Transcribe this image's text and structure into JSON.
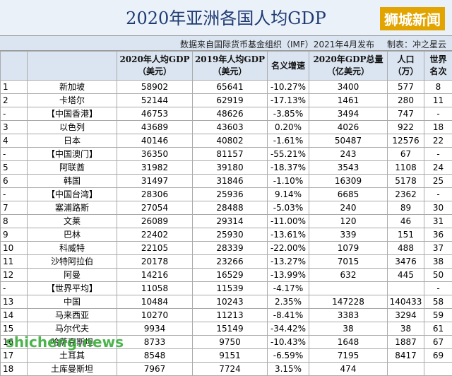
{
  "header": {
    "title": "2020年亚洲各国人均GDP",
    "logo": "狮城新闻",
    "source": "数据来自国际货币基金组织（IMF）2021年4月发布",
    "author": "制表：冲之星云"
  },
  "table": {
    "columns": [
      [
        "2020年人均GDP",
        "（美元）"
      ],
      [
        "2019年人均GDP",
        "（美元）"
      ],
      [
        "名义增速"
      ],
      [
        "2020年GDP总量",
        "（亿美元）"
      ],
      [
        "人口",
        "（万）"
      ],
      [
        "世界",
        "名次"
      ]
    ],
    "rows": [
      [
        "1",
        "新加坡",
        "58902",
        "65641",
        "-10.27%",
        "3400",
        "577",
        "8"
      ],
      [
        "2",
        "卡塔尔",
        "52144",
        "62919",
        "-17.13%",
        "1461",
        "280",
        "11"
      ],
      [
        "-",
        "【中国香港】",
        "46753",
        "48626",
        "-3.85%",
        "3494",
        "747",
        "-"
      ],
      [
        "3",
        "以色列",
        "43689",
        "43603",
        "0.20%",
        "4026",
        "922",
        "18"
      ],
      [
        "4",
        "日本",
        "40146",
        "40802",
        "-1.61%",
        "50487",
        "12576",
        "22"
      ],
      [
        "-",
        "【中国澳门】",
        "36350",
        "81157",
        "-55.21%",
        "243",
        "67",
        "-"
      ],
      [
        "5",
        "阿联酋",
        "31982",
        "39180",
        "-18.37%",
        "3543",
        "1108",
        "24"
      ],
      [
        "6",
        "韩国",
        "31497",
        "31846",
        "-1.10%",
        "16309",
        "5178",
        "25"
      ],
      [
        "-",
        "【中国台湾】",
        "28306",
        "25936",
        "9.14%",
        "6685",
        "2362",
        "-"
      ],
      [
        "7",
        "塞浦路斯",
        "27054",
        "28488",
        "-5.03%",
        "240",
        "89",
        "30"
      ],
      [
        "8",
        "文莱",
        "26089",
        "29314",
        "-11.00%",
        "120",
        "46",
        "31"
      ],
      [
        "9",
        "巴林",
        "22402",
        "25930",
        "-13.61%",
        "339",
        "151",
        "36"
      ],
      [
        "10",
        "科威特",
        "22105",
        "28339",
        "-22.00%",
        "1079",
        "488",
        "37"
      ],
      [
        "11",
        "沙特阿拉伯",
        "20178",
        "23266",
        "-13.27%",
        "7015",
        "3476",
        "38"
      ],
      [
        "12",
        "阿曼",
        "14216",
        "16529",
        "-13.99%",
        "632",
        "445",
        "50"
      ],
      [
        "-",
        "【世界平均】",
        "11058",
        "11539",
        "-4.17%",
        null,
        null,
        "-"
      ],
      [
        "13",
        "中国",
        "10484",
        "10243",
        "2.35%",
        "147228",
        "140433",
        "58"
      ],
      [
        "14",
        "马来西亚",
        "10270",
        "11213",
        "-8.41%",
        "3383",
        "3294",
        "59"
      ],
      [
        "15",
        "马尔代夫",
        "9934",
        "15149",
        "-34.42%",
        "38",
        "38",
        "61"
      ],
      [
        "16",
        "哈萨克斯坦",
        "8733",
        "9750",
        "-10.43%",
        "1648",
        "1887",
        "67"
      ],
      [
        "17",
        "土耳其",
        "8548",
        "9151",
        "-6.59%",
        "7195",
        "8417",
        "69"
      ],
      [
        "18",
        "土库曼斯坦",
        "7967",
        "7724",
        "3.15%",
        "474",
        null,
        null
      ]
    ]
  },
  "watermark": "shicheng.news"
}
